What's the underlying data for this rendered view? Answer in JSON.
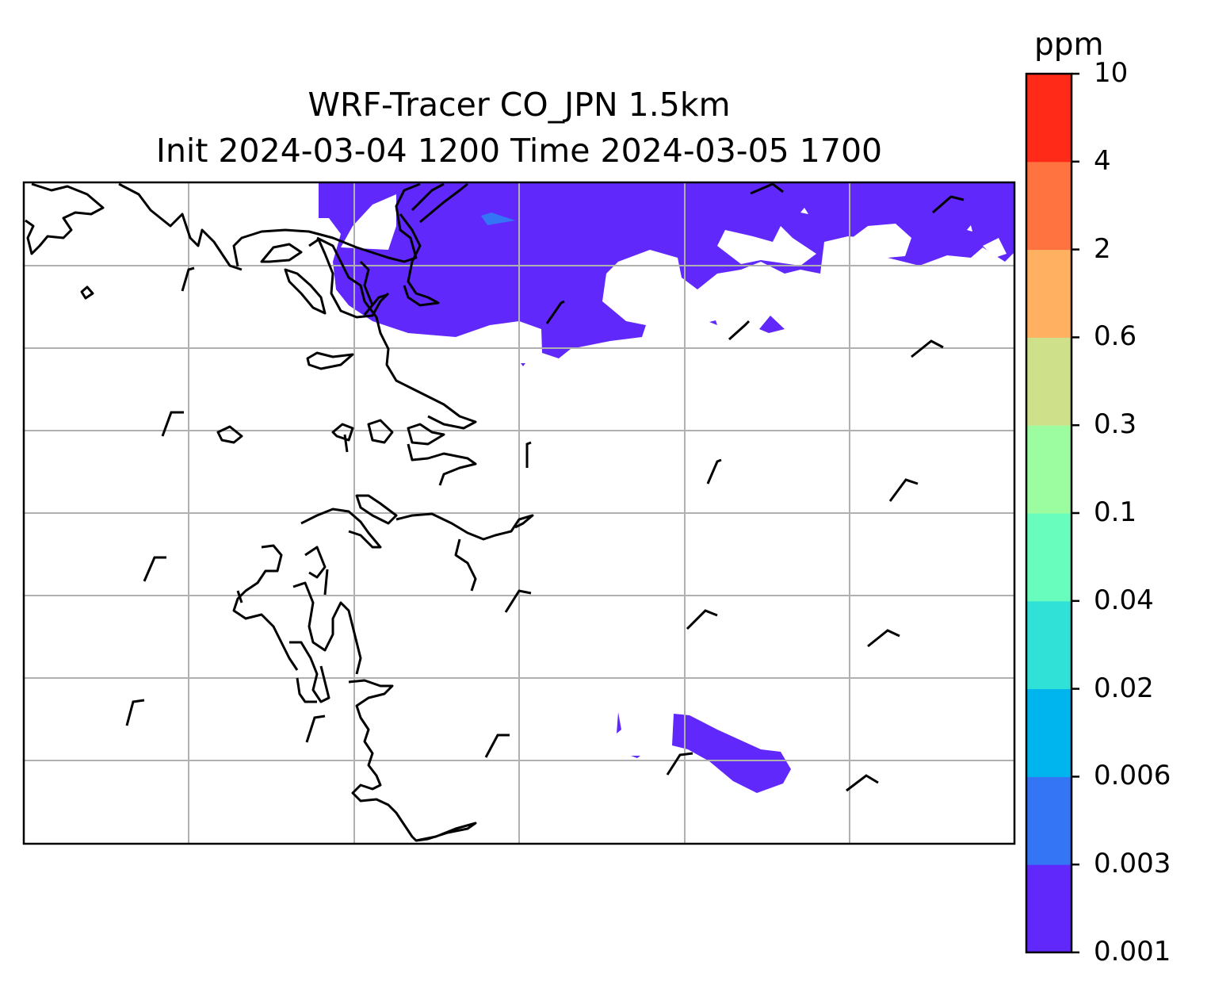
{
  "title": {
    "line1": "WRF-Tracer CO_JPN 1.5km",
    "line2": "Init 2024-03-04 1200 Time 2024-03-05 1700"
  },
  "colorbar": {
    "unit": "ppm",
    "ticks": [
      "0.001",
      "0.003",
      "0.006",
      "0.02",
      "0.04",
      "0.1",
      "0.3",
      "0.6",
      "2",
      "4",
      "10"
    ],
    "colors": [
      "#6128fb",
      "#3375f4",
      "#00b4ee",
      "#2fe1d6",
      "#68fdbd",
      "#9bfd9f",
      "#cfe08a",
      "#ffb060",
      "#ff7341",
      "#ff2a18"
    ]
  },
  "map": {
    "plume_color": "#6128fb",
    "gridlines": true
  }
}
